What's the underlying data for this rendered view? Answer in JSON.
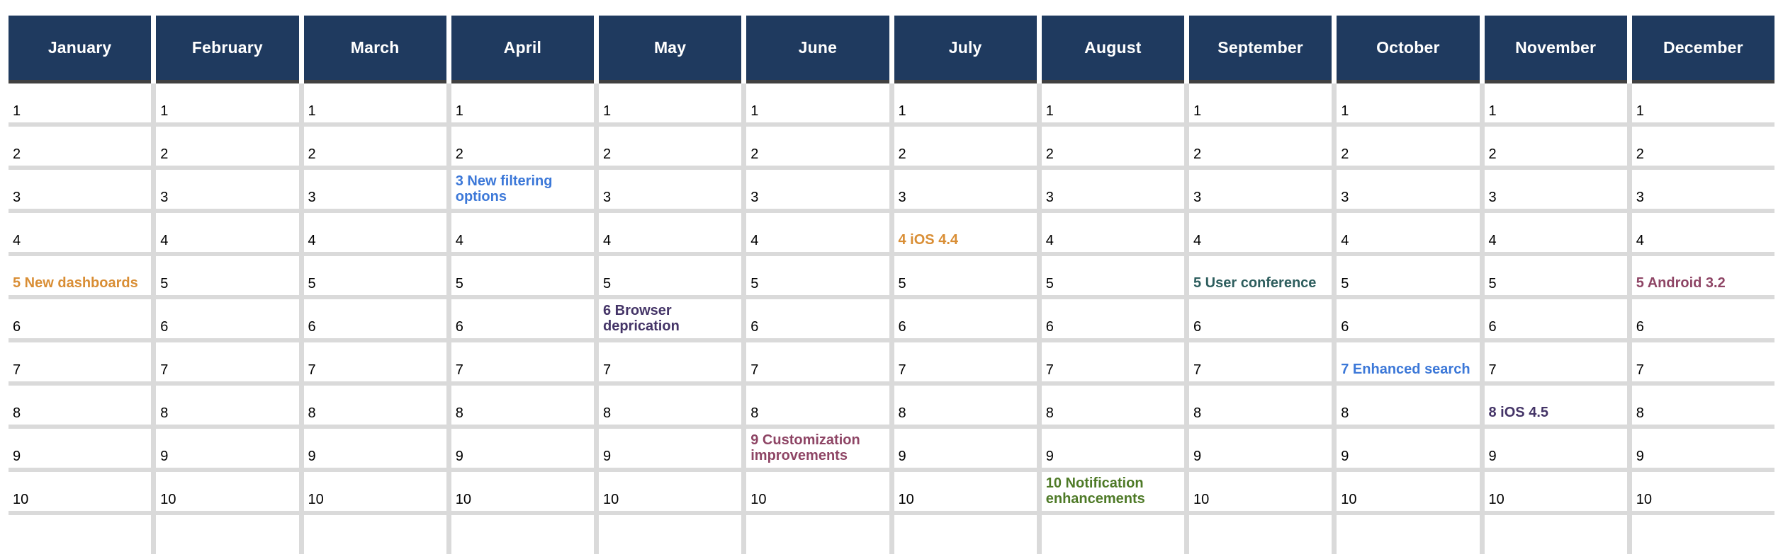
{
  "calendar": {
    "months": [
      "January",
      "February",
      "March",
      "April",
      "May",
      "June",
      "July",
      "August",
      "September",
      "October",
      "November",
      "December"
    ],
    "day_numbers": [
      1,
      2,
      3,
      4,
      5,
      6,
      7,
      8,
      9,
      10
    ],
    "visible_rows": 10,
    "partial_row_at_bottom": true,
    "events": [
      {
        "month": "January",
        "day": 5,
        "label": "5 New dashboards",
        "color_name": "orange",
        "color": "#D98E35"
      },
      {
        "month": "April",
        "day": 3,
        "label": "3 New filtering options",
        "color_name": "blue",
        "color": "#3C78D8"
      },
      {
        "month": "May",
        "day": 6,
        "label": "6 Browser deprication",
        "color_name": "purple",
        "color": "#443467"
      },
      {
        "month": "June",
        "day": 9,
        "label": "9 Customization improvements",
        "color_name": "maroon",
        "color": "#8E4565"
      },
      {
        "month": "July",
        "day": 4,
        "label": "4 iOS 4.4",
        "color_name": "orange",
        "color": "#D98E35"
      },
      {
        "month": "August",
        "day": 10,
        "label": "10 Notification enhancements",
        "color_name": "green",
        "color": "#4E7A27"
      },
      {
        "month": "September",
        "day": 5,
        "label": "5 User conference",
        "color_name": "teal",
        "color": "#2E5E5E"
      },
      {
        "month": "October",
        "day": 7,
        "label": "7 Enhanced search",
        "color_name": "blue",
        "color": "#3C78D8"
      },
      {
        "month": "November",
        "day": 8,
        "label": "8 iOS 4.5",
        "color_name": "purple",
        "color": "#443467"
      },
      {
        "month": "December",
        "day": 5,
        "label": "5 Android 3.2",
        "color_name": "maroon",
        "color": "#8E4565"
      }
    ],
    "colors": {
      "header_bg": "#1F3A5F",
      "header_text": "#FFFFFF",
      "header_strip": "#404040",
      "grid_gap": "#DADADA",
      "cell_bg": "#FFFFFF",
      "day_text": "#000000"
    }
  }
}
